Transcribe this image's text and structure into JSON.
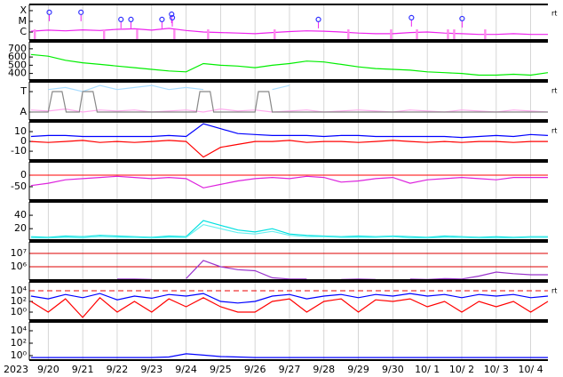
{
  "time_axis": {
    "label": "2023",
    "xlim": [
      262.45,
      277.5
    ],
    "xticks": [
      {
        "value": 263,
        "label": "9/20"
      },
      {
        "value": 264,
        "label": "9/21"
      },
      {
        "value": 265,
        "label": "9/22"
      },
      {
        "value": 266,
        "label": "9/23"
      },
      {
        "value": 267,
        "label": "9/24"
      },
      {
        "value": 268,
        "label": "9/25"
      },
      {
        "value": 269,
        "label": "9/26"
      },
      {
        "value": 270,
        "label": "9/27"
      },
      {
        "value": 271,
        "label": "9/28"
      },
      {
        "value": 272,
        "label": "9/29"
      },
      {
        "value": 273,
        "label": "9/30"
      },
      {
        "value": 274,
        "label": "10/ 1"
      },
      {
        "value": 275,
        "label": "10/ 2"
      },
      {
        "value": 276,
        "label": "10/ 3"
      },
      {
        "value": 277,
        "label": "10/ 4"
      }
    ],
    "x": [
      262.5,
      263,
      263.5,
      264,
      264.5,
      265,
      265.5,
      266,
      266.5,
      267,
      267.5,
      268,
      268.5,
      269,
      269.5,
      270,
      270.5,
      271,
      271.5,
      272,
      272.5,
      273,
      273.5,
      274,
      274.5,
      275,
      275.5,
      276,
      276.5,
      277,
      277.5
    ]
  },
  "chart_data": [
    {
      "type": "line",
      "log": true,
      "ylim": [
        1.8e-07,
        0.00038
      ],
      "right_label": "rt",
      "yticks": [
        {
          "value": 0.0001,
          "label": "X"
        },
        {
          "value": 1e-05,
          "label": "M"
        },
        {
          "value": 1e-06,
          "label": "C"
        }
      ],
      "series": [
        {
          "color": "#ee22ee",
          "values": [
            1.2e-06,
            1.5e-06,
            1.3e-06,
            1.6e-06,
            1.4e-06,
            1.8e-06,
            2e-06,
            1.5e-06,
            2.2e-06,
            1.4e-06,
            1e-06,
            9e-07,
            8e-07,
            7e-07,
            9e-07,
            1.1e-06,
            1.3e-06,
            1.2e-06,
            1e-06,
            8e-07,
            7e-07,
            7e-07,
            9e-07,
            1e-06,
            8e-07,
            7e-07,
            6e-07,
            6e-07,
            7e-07,
            6e-07,
            6e-07
          ]
        }
      ],
      "flares": {
        "color": "#3333ff",
        "x": [
          263.03,
          263.95,
          265.11,
          265.4,
          266.3,
          266.58,
          266.6,
          270.84,
          273.54,
          275.01
        ],
        "values": [
          7e-05,
          7e-05,
          1.5e-05,
          1.5e-05,
          1.5e-05,
          4.6e-05,
          2.2e-05,
          1.5e-05,
          2.2e-05,
          1.8e-05
        ]
      },
      "eclipse_x": [
        262.61,
        264.62,
        265.58,
        266.66,
        267.64,
        269.57,
        271.71,
        272.95,
        273.7,
        274.6,
        274.78,
        275.68
      ],
      "eclipse_color": "#ff88ee"
    },
    {
      "type": "line",
      "ylim": [
        320,
        785
      ],
      "yticks": [
        700,
        600,
        500,
        400
      ],
      "series": [
        {
          "color": "#00ee00",
          "values": [
            630,
            610,
            560,
            530,
            510,
            490,
            470,
            450,
            430,
            420,
            520,
            500,
            490,
            470,
            500,
            520,
            550,
            540,
            510,
            480,
            460,
            450,
            440,
            420,
            410,
            400,
            380,
            380,
            390,
            380,
            410
          ]
        }
      ]
    },
    {
      "type": "line",
      "ylim": [
        -0.39,
        1.48
      ],
      "right_label": "rt",
      "yticks": [
        {
          "value": 1,
          "label": "T"
        },
        {
          "value": 0,
          "label": "A"
        }
      ],
      "series": [
        {
          "color": "#aaddff",
          "values": [
            null,
            1.1,
            1.2,
            1.0,
            1.3,
            1.1,
            1.2,
            1.3,
            1.1,
            1.2,
            1.1,
            null,
            1.2,
            null,
            1.1,
            1.3,
            null,
            1.2,
            null,
            null,
            1.1,
            null,
            null,
            null,
            1.2,
            null,
            1.3,
            null,
            null,
            1.1,
            null
          ]
        },
        {
          "color": "#ffaaee",
          "values": [
            0.1,
            0.05,
            0.15,
            0,
            0.1,
            0.05,
            0.1,
            0,
            0.05,
            0.1,
            0,
            0.15,
            0.05,
            0.1,
            0,
            0.05,
            0.1,
            0,
            0.05,
            0.1,
            0.05,
            0,
            0.1,
            0.05,
            0,
            0.1,
            0.05,
            0,
            0.1,
            0.05,
            0
          ]
        },
        {
          "color": "#888888",
          "x": [
            262.45,
            263.0,
            263.12,
            263.4,
            263.52,
            263.9,
            264.0,
            264.3,
            264.42,
            267.3,
            267.4,
            267.7,
            267.8,
            269.0,
            269.1,
            269.4,
            269.5,
            277.5
          ],
          "values": [
            0,
            0,
            1,
            1,
            0,
            0,
            1,
            1,
            0,
            0,
            1,
            1,
            0,
            0,
            1,
            1,
            0,
            0
          ]
        }
      ]
    },
    {
      "type": "line",
      "ylim": [
        -19,
        20
      ],
      "yticks": [
        10,
        0,
        -10
      ],
      "right_label": "rt",
      "series": [
        {
          "color": "#0000ff",
          "values": [
            5,
            6,
            6,
            5,
            5,
            5,
            5,
            5,
            6,
            5,
            18,
            13,
            8,
            7,
            6,
            6,
            6,
            5,
            6,
            6,
            5,
            5,
            5,
            5,
            5,
            4,
            5,
            6,
            5,
            7,
            6
          ]
        },
        {
          "color": "#ff0000",
          "values": [
            0,
            -1,
            0,
            1,
            -1,
            0,
            -1,
            0,
            1,
            0,
            -16,
            -6,
            -3,
            0,
            0,
            1,
            -1,
            0,
            0,
            -1,
            0,
            1,
            0,
            -1,
            0,
            -1,
            0,
            0,
            -1,
            0,
            0
          ]
        }
      ]
    },
    {
      "type": "line",
      "ylim": [
        -108,
        58
      ],
      "yticks": [
        0,
        -50
      ],
      "hlines": [
        0
      ],
      "hline_color": "#ff0000",
      "series": [
        {
          "color": "#dd22dd",
          "values": [
            -45,
            -35,
            -20,
            -15,
            -10,
            -5,
            -10,
            -15,
            -10,
            -15,
            -55,
            -40,
            -25,
            -15,
            -10,
            -15,
            -5,
            -10,
            -30,
            -25,
            -15,
            -10,
            -35,
            -20,
            -15,
            -10,
            -15,
            -20,
            -10,
            -10,
            -10
          ]
        }
      ]
    },
    {
      "type": "line",
      "ylim": [
        3,
        60
      ],
      "yticks": [
        40,
        20
      ],
      "series": [
        {
          "color": "#00e0e0",
          "values": [
            8,
            7,
            9,
            8,
            10,
            9,
            8,
            7,
            9,
            8,
            32,
            25,
            18,
            15,
            20,
            12,
            10,
            9,
            8,
            9,
            8,
            9,
            8,
            7,
            9,
            8,
            7,
            8,
            7,
            8,
            8
          ]
        },
        {
          "color": "#66f0f0",
          "values": [
            6,
            6,
            7,
            6,
            8,
            7,
            7,
            6,
            7,
            7,
            26,
            20,
            14,
            12,
            16,
            10,
            8,
            8,
            7,
            7,
            7,
            8,
            6,
            6,
            7,
            7,
            6,
            6,
            6,
            7,
            7
          ]
        }
      ]
    },
    {
      "type": "line",
      "log": true,
      "ylim": [
        100000,
        74000000
      ],
      "yticks": [
        {
          "value": 10000000,
          "label": "10⁷"
        },
        {
          "value": 1000000,
          "label": "10⁶"
        }
      ],
      "hlines": [
        10000000,
        1000000
      ],
      "hline_color": "#dd0000",
      "series": [
        {
          "color": "#9933cc",
          "values": [
            null,
            null,
            null,
            null,
            null,
            120000,
            120000,
            110000,
            null,
            130000,
            3000000,
            1000000,
            600000,
            500000,
            150000,
            120000,
            120000,
            null,
            110000,
            120000,
            110000,
            null,
            120000,
            110000,
            130000,
            120000,
            200000,
            400000,
            300000,
            250000,
            250000
          ]
        }
      ]
    },
    {
      "type": "line",
      "log": true,
      "ylim": [
        0.032,
        460000
      ],
      "right_label": "rt",
      "yticks": [
        {
          "value": 10000,
          "label": "10⁴"
        },
        {
          "value": 100,
          "label": "10²"
        },
        {
          "value": 1,
          "label": "10⁰"
        }
      ],
      "hlines": [
        10000
      ],
      "hline_color": "#ee0000",
      "hline_style": "dashed",
      "series": [
        {
          "color": "#ff0000",
          "values": [
            100,
            1,
            300,
            0.1,
            500,
            1,
            100,
            1,
            300,
            10,
            500,
            10,
            1,
            1,
            100,
            300,
            1,
            100,
            300,
            1,
            200,
            100,
            300,
            10,
            100,
            1,
            100,
            10,
            100,
            1,
            100
          ]
        },
        {
          "color": "#0000ff",
          "values": [
            1000,
            300,
            2000,
            500,
            3000,
            200,
            1000,
            400,
            2000,
            1000,
            3000,
            100,
            50,
            100,
            1000,
            2000,
            300,
            1000,
            2000,
            500,
            2000,
            1000,
            3000,
            1000,
            2000,
            500,
            2000,
            1000,
            2000,
            500,
            1000
          ]
        }
      ]
    },
    {
      "type": "line",
      "log": true,
      "ylim": [
        0.19,
        270000
      ],
      "yticks": [
        {
          "value": 10000,
          "label": "10⁴"
        },
        {
          "value": 100,
          "label": "10²"
        },
        {
          "value": 1,
          "label": "10⁰"
        }
      ],
      "series": [
        {
          "color": "#0000ff",
          "values": [
            0.5,
            0.5,
            0.5,
            0.5,
            0.5,
            0.5,
            0.5,
            0.5,
            0.6,
            2,
            1.2,
            0.7,
            0.6,
            0.5,
            0.5,
            0.5,
            0.5,
            0.5,
            0.5,
            0.5,
            0.5,
            0.5,
            0.5,
            0.5,
            0.5,
            0.5,
            0.5,
            0.5,
            0.5,
            0.5,
            0.5
          ]
        }
      ]
    }
  ]
}
